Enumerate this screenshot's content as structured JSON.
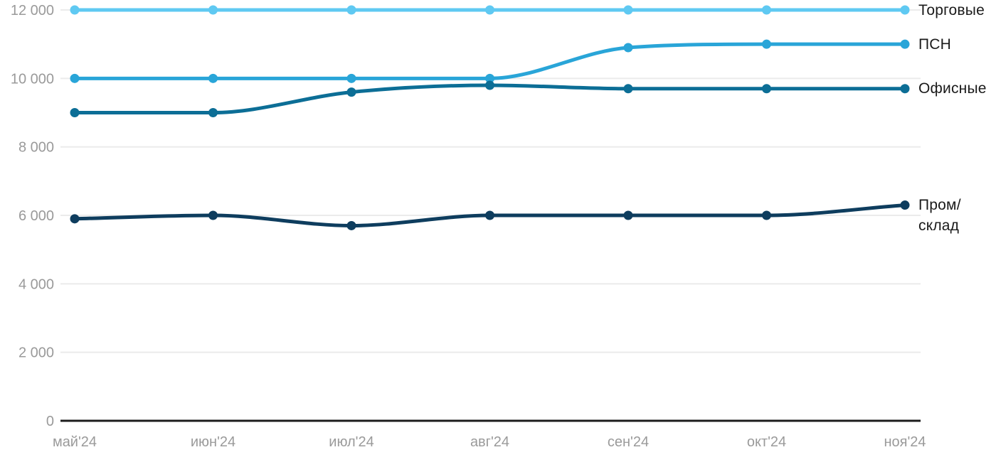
{
  "chart_data": {
    "type": "line",
    "x": [
      "май'24",
      "июн'24",
      "июл'24",
      "авг'24",
      "сен'24",
      "окт'24",
      "ноя'24"
    ],
    "series": [
      {
        "name": "Торговые",
        "legend_label": "Торговые",
        "color": "#5FC9F2",
        "values": [
          12000,
          12000,
          12000,
          12000,
          12000,
          12000,
          12000
        ]
      },
      {
        "name": "ПСН",
        "legend_label": "ПСН",
        "color": "#29A5D8",
        "values": [
          10000,
          10000,
          10000,
          10000,
          10900,
          11000,
          11000
        ]
      },
      {
        "name": "Офисные",
        "legend_label": "Офисные",
        "color": "#0C6E96",
        "values": [
          9000,
          9000,
          9600,
          9800,
          9700,
          9700,
          9700
        ]
      },
      {
        "name": "Пром/склад",
        "legend_label": "Пром/\nсклад",
        "color": "#0E3D5E",
        "values": [
          5900,
          6000,
          5700,
          6000,
          6000,
          6000,
          6300
        ]
      }
    ],
    "y_axis": {
      "min": 0,
      "max": 12000,
      "tick_step": 2000,
      "tick_labels": [
        "0",
        "2 000",
        "4 000",
        "6 000",
        "8 000",
        "10 000",
        "12 000"
      ]
    },
    "x_axis": {
      "tick_labels": [
        "май'24",
        "июн'24",
        "июл'24",
        "авг'24",
        "сен'24",
        "окт'24",
        "ноя'24"
      ]
    },
    "legend_position": "right",
    "grid": "horizontal",
    "smooth": true
  },
  "style": {
    "axis_text_color": "#9A9A9A",
    "grid_color": "#EBEBEB",
    "axis_line_color": "#1C1C1C",
    "legend_text_color": "#1A1A1A",
    "background": "#FFFFFF"
  }
}
